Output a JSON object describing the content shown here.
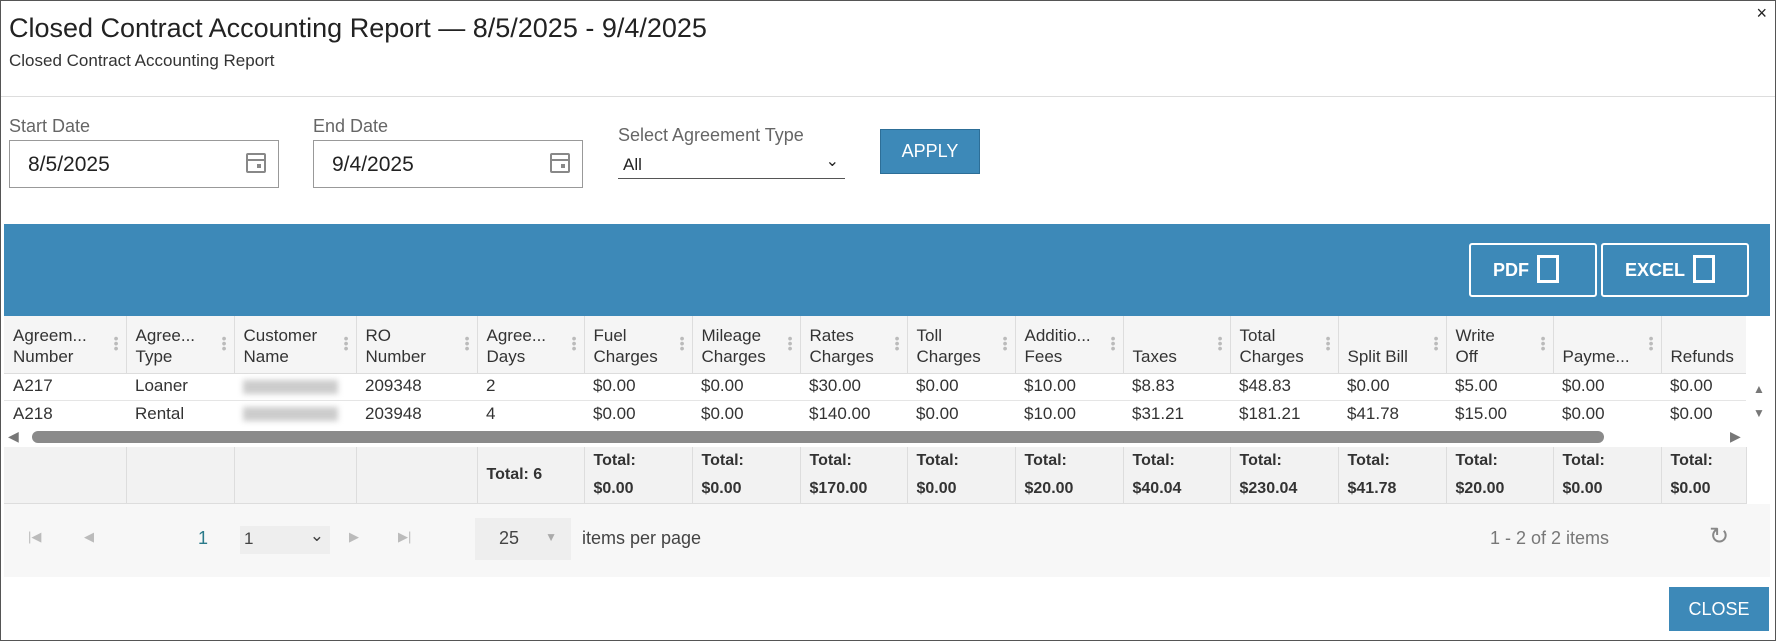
{
  "dialog": {
    "title": "Closed Contract Accounting Report — 8/5/2025 - 9/4/2025",
    "subtitle": "Closed Contract Accounting Report",
    "close_x": "×",
    "close_label": "CLOSE"
  },
  "filters": {
    "start_label": "Start Date",
    "start_value": "8/5/2025",
    "end_label": "End Date",
    "end_value": "9/4/2025",
    "type_label": "Select Agreement Type",
    "type_value": "All",
    "apply_label": "APPLY"
  },
  "toolbar": {
    "pdf_label": "PDF",
    "excel_label": "EXCEL"
  },
  "columns": [
    [
      "Agreem...",
      "Number"
    ],
    [
      "Agree...",
      "Type"
    ],
    [
      "Customer",
      "Name"
    ],
    [
      "RO",
      "Number"
    ],
    [
      "Agree...",
      "Days"
    ],
    [
      "Fuel",
      "Charges"
    ],
    [
      "Mileage",
      "Charges"
    ],
    [
      "Rates",
      "Charges"
    ],
    [
      "Toll",
      "Charges"
    ],
    [
      "Additio...",
      "Fees"
    ],
    [
      "",
      "Taxes"
    ],
    [
      "Total",
      "Charges"
    ],
    [
      "",
      "Split Bill"
    ],
    [
      "Write",
      "Off"
    ],
    [
      "",
      "Payme..."
    ],
    [
      "",
      "Refunds"
    ]
  ],
  "rows": [
    [
      "A217",
      "Loaner",
      "",
      "209348",
      "2",
      "$0.00",
      "$0.00",
      "$30.00",
      "$0.00",
      "$10.00",
      "$8.83",
      "$48.83",
      "$0.00",
      "$5.00",
      "$0.00",
      "$0.00"
    ],
    [
      "A218",
      "Rental",
      "",
      "203948",
      "4",
      "$0.00",
      "$0.00",
      "$140.00",
      "$0.00",
      "$10.00",
      "$31.21",
      "$181.21",
      "$41.78",
      "$15.00",
      "$0.00",
      "$0.00"
    ]
  ],
  "totals": [
    "",
    "",
    "",
    "",
    "Total: 6",
    [
      "Total:",
      "$0.00"
    ],
    [
      "Total:",
      "$0.00"
    ],
    [
      "Total:",
      "$170.00"
    ],
    [
      "Total:",
      "$0.00"
    ],
    [
      "Total:",
      "$20.00"
    ],
    [
      "Total:",
      "$40.04"
    ],
    [
      "Total:",
      "$230.04"
    ],
    [
      "Total:",
      "$41.78"
    ],
    [
      "Total:",
      "$20.00"
    ],
    [
      "Total:",
      "$0.00"
    ],
    [
      "Total:",
      "$0.00"
    ]
  ],
  "pager": {
    "current_page": "1",
    "page_select": "1",
    "page_size": "25",
    "items_per_page_label": "items per page",
    "summary": "1 - 2 of 2 items"
  }
}
